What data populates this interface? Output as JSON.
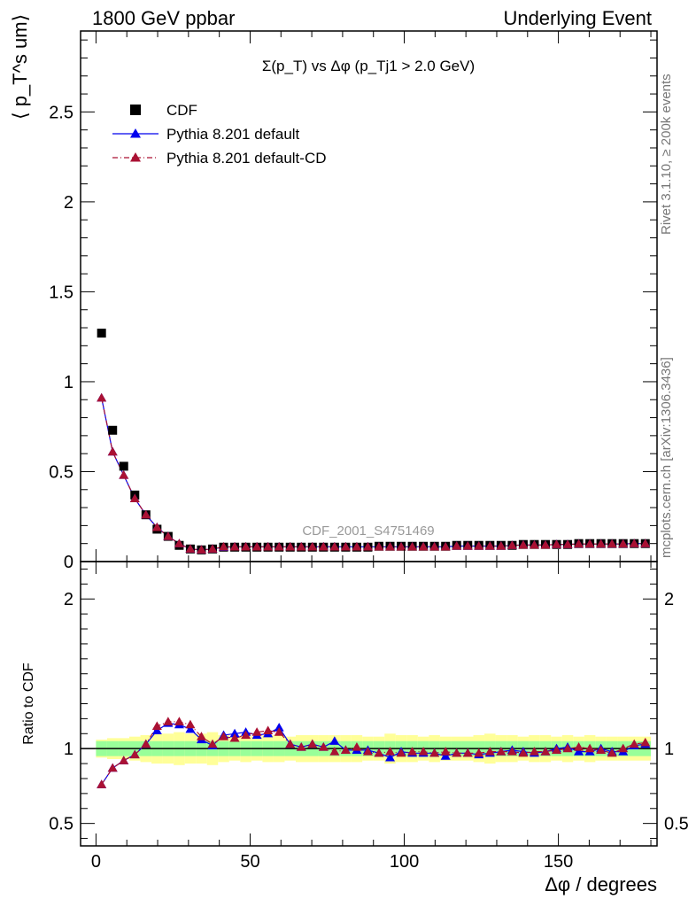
{
  "header": {
    "left": "1800 GeV ppbar",
    "right": "Underlying Event"
  },
  "side": {
    "rivet": "Rivet 3.1.10, ≥ 200k events",
    "mcplots": "mcplots.cern.ch [arXiv:1306.3436]"
  },
  "watermark": "CDF_2001_S4751469",
  "colors": {
    "cdf": "#000000",
    "default": "#0000ee",
    "default_cd": "#aa1133",
    "band_inner": "#99ff99",
    "band_outer": "#ffff99"
  },
  "chart_data": [
    {
      "type": "scatter",
      "title": "Σ(p_T) vs Δφ (p_Tj1 > 2.0 GeV)",
      "ylabel": "⟨ p_T^s um⟩",
      "xlim": [
        -5,
        182
      ],
      "ylim": [
        0,
        2.95
      ],
      "yticks": [
        0,
        0.5,
        1,
        1.5,
        2,
        2.5
      ],
      "ytick_labels": [
        "0",
        "0.5",
        "1",
        "1.5",
        "2",
        "2.5"
      ],
      "legend_position": "top-left",
      "x": [
        1.8,
        5.4,
        9.0,
        12.6,
        16.2,
        19.8,
        23.4,
        27.0,
        30.6,
        34.2,
        37.8,
        41.4,
        45.0,
        48.6,
        52.2,
        55.8,
        59.4,
        63.0,
        66.6,
        70.2,
        73.8,
        77.4,
        81.0,
        84.6,
        88.2,
        91.8,
        95.4,
        99.0,
        102.6,
        106.2,
        109.8,
        113.4,
        117.0,
        120.6,
        124.2,
        127.8,
        131.4,
        135.0,
        138.6,
        142.2,
        145.8,
        149.4,
        153.0,
        156.6,
        160.2,
        163.8,
        167.4,
        171.0,
        174.6,
        178.2
      ],
      "series": [
        {
          "name": "CDF",
          "marker": "square",
          "values": [
            1.27,
            0.73,
            0.53,
            0.37,
            0.26,
            0.18,
            0.14,
            0.09,
            0.07,
            0.065,
            0.07,
            0.08,
            0.08,
            0.08,
            0.08,
            0.08,
            0.08,
            0.08,
            0.08,
            0.08,
            0.08,
            0.08,
            0.08,
            0.08,
            0.08,
            0.085,
            0.085,
            0.085,
            0.085,
            0.085,
            0.085,
            0.085,
            0.09,
            0.09,
            0.09,
            0.09,
            0.09,
            0.09,
            0.095,
            0.095,
            0.095,
            0.095,
            0.095,
            0.1,
            0.1,
            0.1,
            0.1,
            0.1,
            0.1,
            0.1
          ]
        },
        {
          "name": "Pythia 8.201 default",
          "marker": "triangle",
          "values": [
            0.91,
            0.61,
            0.48,
            0.35,
            0.26,
            0.19,
            0.14,
            0.1,
            0.07,
            0.065,
            0.07,
            0.08,
            0.082,
            0.082,
            0.082,
            0.082,
            0.082,
            0.082,
            0.082,
            0.082,
            0.082,
            0.082,
            0.082,
            0.082,
            0.082,
            0.082,
            0.082,
            0.082,
            0.082,
            0.082,
            0.082,
            0.082,
            0.086,
            0.086,
            0.086,
            0.086,
            0.086,
            0.09,
            0.092,
            0.092,
            0.092,
            0.095,
            0.095,
            0.098,
            0.098,
            0.098,
            0.098,
            0.098,
            0.1,
            0.1
          ]
        },
        {
          "name": "Pythia 8.201 default-CD",
          "marker": "triangle",
          "values": [
            0.91,
            0.61,
            0.48,
            0.35,
            0.26,
            0.19,
            0.14,
            0.1,
            0.07,
            0.065,
            0.07,
            0.082,
            0.082,
            0.082,
            0.082,
            0.082,
            0.082,
            0.082,
            0.082,
            0.082,
            0.082,
            0.082,
            0.082,
            0.082,
            0.082,
            0.082,
            0.082,
            0.082,
            0.082,
            0.082,
            0.082,
            0.082,
            0.086,
            0.086,
            0.086,
            0.086,
            0.086,
            0.09,
            0.092,
            0.092,
            0.092,
            0.095,
            0.095,
            0.098,
            0.098,
            0.098,
            0.098,
            0.098,
            0.1,
            0.1
          ]
        }
      ]
    },
    {
      "type": "scatter",
      "ylabel": "Ratio to CDF",
      "xlabel": "Δφ / degrees",
      "xlim": [
        -5,
        182
      ],
      "ylim": [
        0.35,
        2.25
      ],
      "yticks": [
        0.5,
        1,
        2
      ],
      "ytick_labels": [
        "0.5",
        "1",
        "2"
      ],
      "xticks": [
        0,
        50,
        100,
        150
      ],
      "xtick_labels": [
        "0",
        "50",
        "100",
        "150"
      ],
      "band_inner": [
        0.05,
        0.05,
        0.05,
        0.05,
        0.05,
        0.05,
        0.05,
        0.05,
        0.05,
        0.05,
        0.05,
        0.05,
        0.05,
        0.05,
        0.05,
        0.05,
        0.05,
        0.05,
        0.05,
        0.05,
        0.05,
        0.05,
        0.05,
        0.05,
        0.05,
        0.05,
        0.05,
        0.05,
        0.05,
        0.05,
        0.05,
        0.05,
        0.05,
        0.05,
        0.05,
        0.05,
        0.05,
        0.05,
        0.05,
        0.05,
        0.05,
        0.05,
        0.05,
        0.05,
        0.05,
        0.05,
        0.05,
        0.05,
        0.05,
        0.05
      ],
      "band_outer": [
        0.06,
        0.07,
        0.07,
        0.08,
        0.09,
        0.1,
        0.1,
        0.11,
        0.1,
        0.1,
        0.11,
        0.09,
        0.08,
        0.09,
        0.08,
        0.09,
        0.09,
        0.08,
        0.09,
        0.09,
        0.09,
        0.09,
        0.09,
        0.09,
        0.08,
        0.08,
        0.1,
        0.09,
        0.09,
        0.08,
        0.09,
        0.08,
        0.08,
        0.08,
        0.09,
        0.1,
        0.09,
        0.09,
        0.08,
        0.09,
        0.09,
        0.08,
        0.09,
        0.08,
        0.09,
        0.08,
        0.08,
        0.08,
        0.08,
        0.08
      ],
      "series": [
        {
          "name": "Pythia 8.201 default",
          "values": [
            0.76,
            0.87,
            0.92,
            0.96,
            1.03,
            1.12,
            1.17,
            1.16,
            1.13,
            1.06,
            1.02,
            1.09,
            1.1,
            1.11,
            1.09,
            1.1,
            1.14,
            1.03,
            1.01,
            1.03,
            1.01,
            1.05,
            0.99,
            0.99,
            0.99,
            0.97,
            0.94,
            0.98,
            0.97,
            0.97,
            0.97,
            0.95,
            0.97,
            0.97,
            0.96,
            0.97,
            0.98,
            0.99,
            0.98,
            0.97,
            0.98,
            1.0,
            1.01,
            0.98,
            0.98,
            1.0,
            0.98,
            0.98,
            1.02,
            1.03
          ]
        },
        {
          "name": "Pythia 8.201 default-CD",
          "values": [
            0.76,
            0.87,
            0.92,
            0.96,
            1.03,
            1.15,
            1.18,
            1.18,
            1.16,
            1.08,
            1.03,
            1.08,
            1.07,
            1.09,
            1.11,
            1.12,
            1.11,
            1.03,
            1.01,
            1.03,
            1.01,
            0.98,
            0.99,
            1.01,
            0.98,
            0.97,
            0.98,
            0.97,
            0.98,
            0.98,
            0.97,
            0.98,
            0.97,
            0.97,
            0.97,
            0.98,
            0.98,
            0.98,
            0.97,
            0.98,
            0.98,
            0.99,
            1.0,
            1.01,
            1.0,
            0.99,
            0.97,
            1.0,
            1.03,
            1.04
          ]
        }
      ]
    }
  ]
}
